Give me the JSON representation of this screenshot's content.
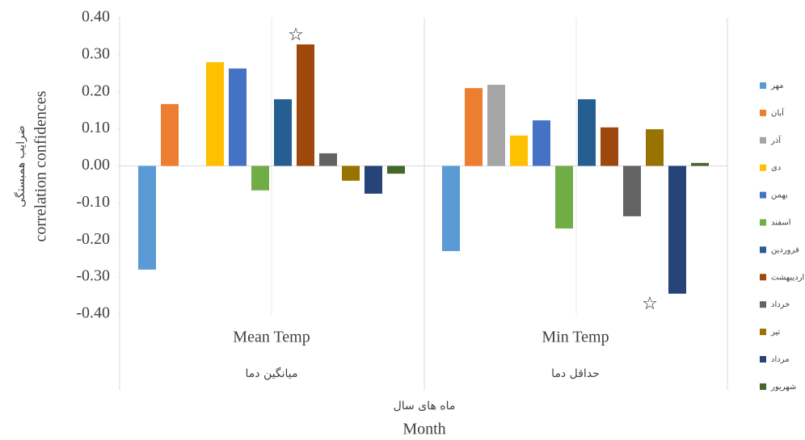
{
  "chart_data": {
    "type": "bar",
    "categories": [
      "Mean Temp",
      "Min Temp"
    ],
    "categories_fa": [
      "میانگین دما",
      "حداقل دما"
    ],
    "y_label": [
      "ضرایب همبستگی",
      "correlation confidences"
    ],
    "x_label": [
      "ماه های سال",
      "Month"
    ],
    "ylim": [
      -0.4,
      0.4
    ],
    "yticks": [
      {
        "value": -0.4,
        "label": "-0.40"
      },
      {
        "value": -0.3,
        "label": "-0.30"
      },
      {
        "value": -0.2,
        "label": "-0.20"
      },
      {
        "value": -0.1,
        "label": "-0.10"
      },
      {
        "value": 0,
        "label": "0.00"
      },
      {
        "value": 0.1,
        "label": "0.10"
      },
      {
        "value": 0.2,
        "label": "0.20"
      },
      {
        "value": 0.3,
        "label": "0.30"
      },
      {
        "value": 0.4,
        "label": "0.40"
      }
    ],
    "annotations": [
      "☆",
      "☆"
    ],
    "series": [
      {
        "name": "مهر",
        "color": "#5b9bd5",
        "values": [
          -0.28,
          -0.23
        ]
      },
      {
        "name": "آبان",
        "color": "#ed7d31",
        "values": [
          0.167,
          0.21
        ]
      },
      {
        "name": "آذر",
        "color": "#a5a5a5",
        "values": [
          0,
          0.219
        ]
      },
      {
        "name": "دی",
        "color": "#ffc000",
        "values": [
          0.28,
          0.082
        ]
      },
      {
        "name": "بهمن",
        "color": "#4472c4",
        "values": [
          0.263,
          0.123
        ]
      },
      {
        "name": "اسفند",
        "color": "#70ad47",
        "values": [
          -0.066,
          -0.169
        ]
      },
      {
        "name": "فروردین",
        "color": "#255e91",
        "values": [
          0.18,
          0.18
        ]
      },
      {
        "name": "اردیبهشت",
        "color": "#9e480e",
        "values": [
          0.328,
          0.104
        ]
      },
      {
        "name": "خرداد",
        "color": "#636363",
        "values": [
          0.034,
          -0.136
        ]
      },
      {
        "name": "تیر",
        "color": "#997300",
        "values": [
          -0.04,
          0.099
        ]
      },
      {
        "name": "مرداد",
        "color": "#264478",
        "values": [
          -0.075,
          -0.345
        ]
      },
      {
        "name": "شهریور",
        "color": "#43682b",
        "values": [
          -0.021,
          0.008
        ]
      }
    ]
  }
}
